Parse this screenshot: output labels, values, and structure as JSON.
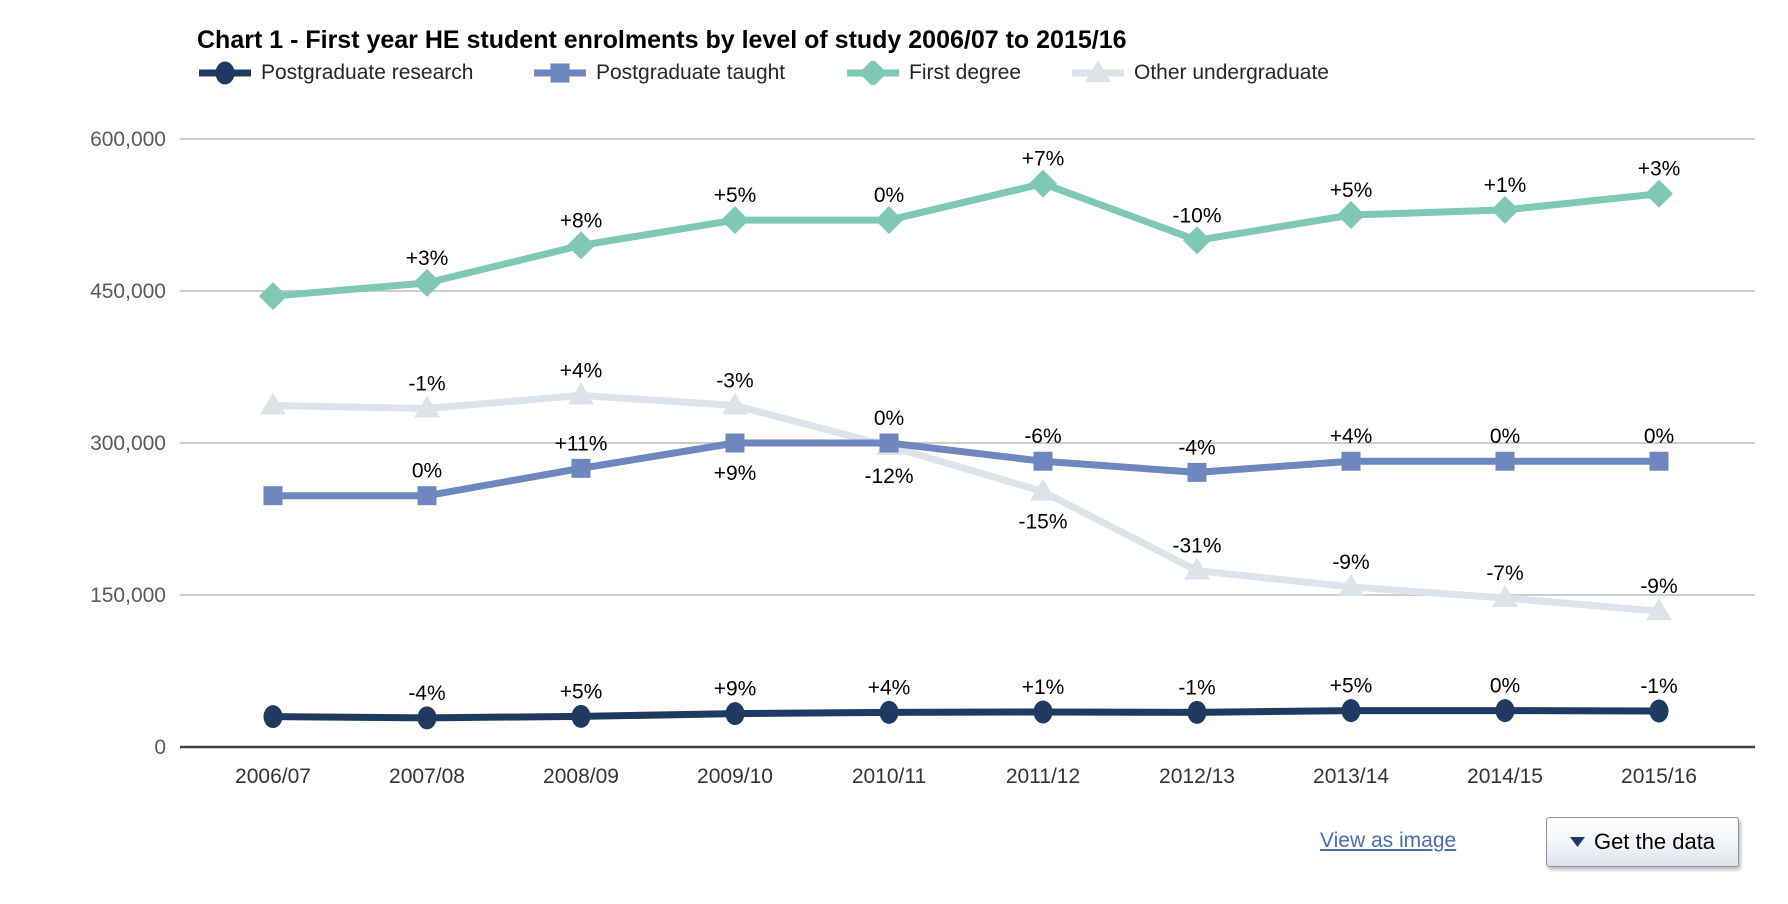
{
  "title": "Chart 1 - First year HE student enrolments by level of study 2006/07 to 2015/16",
  "chart_data": {
    "type": "line",
    "categories": [
      "2006/07",
      "2007/08",
      "2008/09",
      "2009/10",
      "2010/11",
      "2011/12",
      "2012/13",
      "2013/14",
      "2014/15",
      "2015/16"
    ],
    "y_ticks": [
      {
        "value": 0,
        "label": "0"
      },
      {
        "value": 150000,
        "label": "150,000"
      },
      {
        "value": 300000,
        "label": "300,000"
      },
      {
        "value": 450000,
        "label": "450,000"
      },
      {
        "value": 600000,
        "label": "600,000"
      }
    ],
    "ylim": [
      0,
      600000
    ],
    "grid": true,
    "legend_position": "top",
    "series": [
      {
        "name": "Postgraduate research",
        "color": "#1f3a60",
        "marker": "circle",
        "values": [
          30000,
          28800,
          30200,
          32900,
          34200,
          34600,
          34200,
          35900,
          35900,
          35500
        ],
        "point_labels": [
          "",
          "-4%",
          "+5%",
          "+9%",
          "+4%",
          "+1%",
          "-1%",
          "+5%",
          "0%",
          "-1%"
        ],
        "label_placement": [
          "",
          "above",
          "above",
          "above",
          "above",
          "above",
          "above",
          "above",
          "above",
          "above"
        ]
      },
      {
        "name": "Postgraduate taught",
        "color": "#6e87be",
        "marker": "square",
        "values": [
          248000,
          248000,
          275000,
          300000,
          300000,
          282000,
          271000,
          282000,
          282000,
          282000
        ],
        "point_labels": [
          "",
          "0%",
          "+11%",
          "+9%",
          "0%",
          "-6%",
          "-4%",
          "+4%",
          "0%",
          "0%"
        ],
        "label_placement": [
          "",
          "above",
          "above",
          "below",
          "above",
          "above",
          "above",
          "above",
          "above",
          "above"
        ]
      },
      {
        "name": "First degree",
        "color": "#7ec8b4",
        "marker": "diamond",
        "values": [
          445000,
          458000,
          495000,
          520000,
          520000,
          556000,
          500000,
          525000,
          530000,
          546000
        ],
        "point_labels": [
          "",
          "+3%",
          "+8%",
          "+5%",
          "0%",
          "+7%",
          "-10%",
          "+5%",
          "+1%",
          "+3%"
        ],
        "label_placement": [
          "",
          "above",
          "above",
          "above",
          "above",
          "above",
          "above",
          "above",
          "above",
          "above"
        ]
      },
      {
        "name": "Other undergraduate",
        "color": "#dee2e9",
        "marker": "triangle",
        "values": [
          337000,
          334000,
          347000,
          337000,
          297000,
          252000,
          174000,
          158000,
          147000,
          134000
        ],
        "point_labels": [
          "",
          "-1%",
          "+4%",
          "-3%",
          "-12%",
          "-15%",
          "-31%",
          "-9%",
          "-7%",
          "-9%"
        ],
        "label_placement": [
          "",
          "above",
          "above",
          "above",
          "below",
          "below",
          "above",
          "above",
          "above",
          "above"
        ]
      }
    ]
  },
  "colors": {
    "grid": "#cdcdcd",
    "axis": "#404040",
    "y_tick_text": "#595959",
    "x_tick_text": "#333333",
    "point_label_text": "#000000",
    "link": "#4a6fa8",
    "dropdown_icon": "#1f3a66"
  },
  "icons": {
    "get_the_data": "triangle-down-icon"
  },
  "footer": {
    "view_as_image_label": "View as image",
    "get_the_data_label": "Get the data"
  }
}
